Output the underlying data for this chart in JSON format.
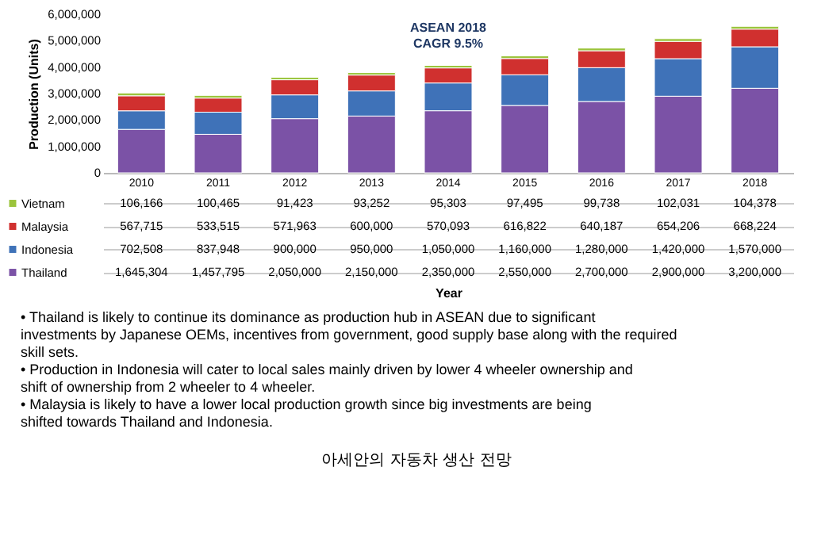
{
  "chart_data": {
    "type": "bar",
    "stacked": true,
    "categories": [
      "2010",
      "2011",
      "2012",
      "2013",
      "2014",
      "2015",
      "2016",
      "2017",
      "2018"
    ],
    "series": [
      {
        "name": "Thailand",
        "color": "#7b52a6",
        "values": [
          1645304,
          1457795,
          2050000,
          2150000,
          2350000,
          2550000,
          2700000,
          2900000,
          3200000
        ],
        "value_labels": [
          "1,645,304",
          "1,457,795",
          "2,050,000",
          "2,150,000",
          "2,350,000",
          "2,550,000",
          "2,700,000",
          "2,900,000",
          "3,200,000"
        ]
      },
      {
        "name": "Indonesia",
        "color": "#3f72b8",
        "values": [
          702508,
          837948,
          900000,
          950000,
          1050000,
          1160000,
          1280000,
          1420000,
          1570000
        ],
        "value_labels": [
          "702,508",
          "837,948",
          "900,000",
          "950,000",
          "1,050,000",
          "1,160,000",
          "1,280,000",
          "1,420,000",
          "1,570,000"
        ]
      },
      {
        "name": "Malaysia",
        "color": "#d0302f",
        "values": [
          567715,
          533515,
          571963,
          600000,
          570093,
          616822,
          640187,
          654206,
          668224
        ],
        "value_labels": [
          "567,715",
          "533,515",
          "571,963",
          "600,000",
          "570,093",
          "616,822",
          "640,187",
          "654,206",
          "668,224"
        ]
      },
      {
        "name": "Vietnam",
        "color": "#9bc43c",
        "values": [
          106166,
          100465,
          91423,
          93252,
          95303,
          97495,
          99738,
          102031,
          104378
        ],
        "value_labels": [
          "106,166",
          "100,465",
          "91,423",
          "93,252",
          "95,303",
          "97,495",
          "99,738",
          "102,031",
          "104,378"
        ]
      }
    ],
    "ylim": [
      0,
      6000000
    ],
    "yticks": [
      {
        "value": 0,
        "label": "0"
      },
      {
        "value": 1000000,
        "label": "1,000,000"
      },
      {
        "value": 2000000,
        "label": "2,000,000"
      },
      {
        "value": 3000000,
        "label": "3,000,000"
      },
      {
        "value": 4000000,
        "label": "4,000,000"
      },
      {
        "value": 5000000,
        "label": "5,000,000"
      },
      {
        "value": 6000000,
        "label": "6,000,000"
      }
    ],
    "ylabel": "Production (Units)",
    "legend": "bottom",
    "grid": false,
    "annotations": [
      "ASEAN 2018\nCAGR 9.5%",
      "Year",
      "• Thailand is likely to continue its dominance as production hub in ASEAN due to significant investments by Japanese OEMs, incentives from government, good supply base along with the required skill sets.",
      "• Production in Indonesia will cater to local sales mainly driven by lower 4 wheeler ownership and shift of ownership from 2 wheeler to 4 wheeler.",
      "• Malaysia is likely to have a lower local production growth since big investments are being shifted towards Thailand and Indonesia.",
      "아세안의 자동차 생산 전망"
    ]
  }
}
